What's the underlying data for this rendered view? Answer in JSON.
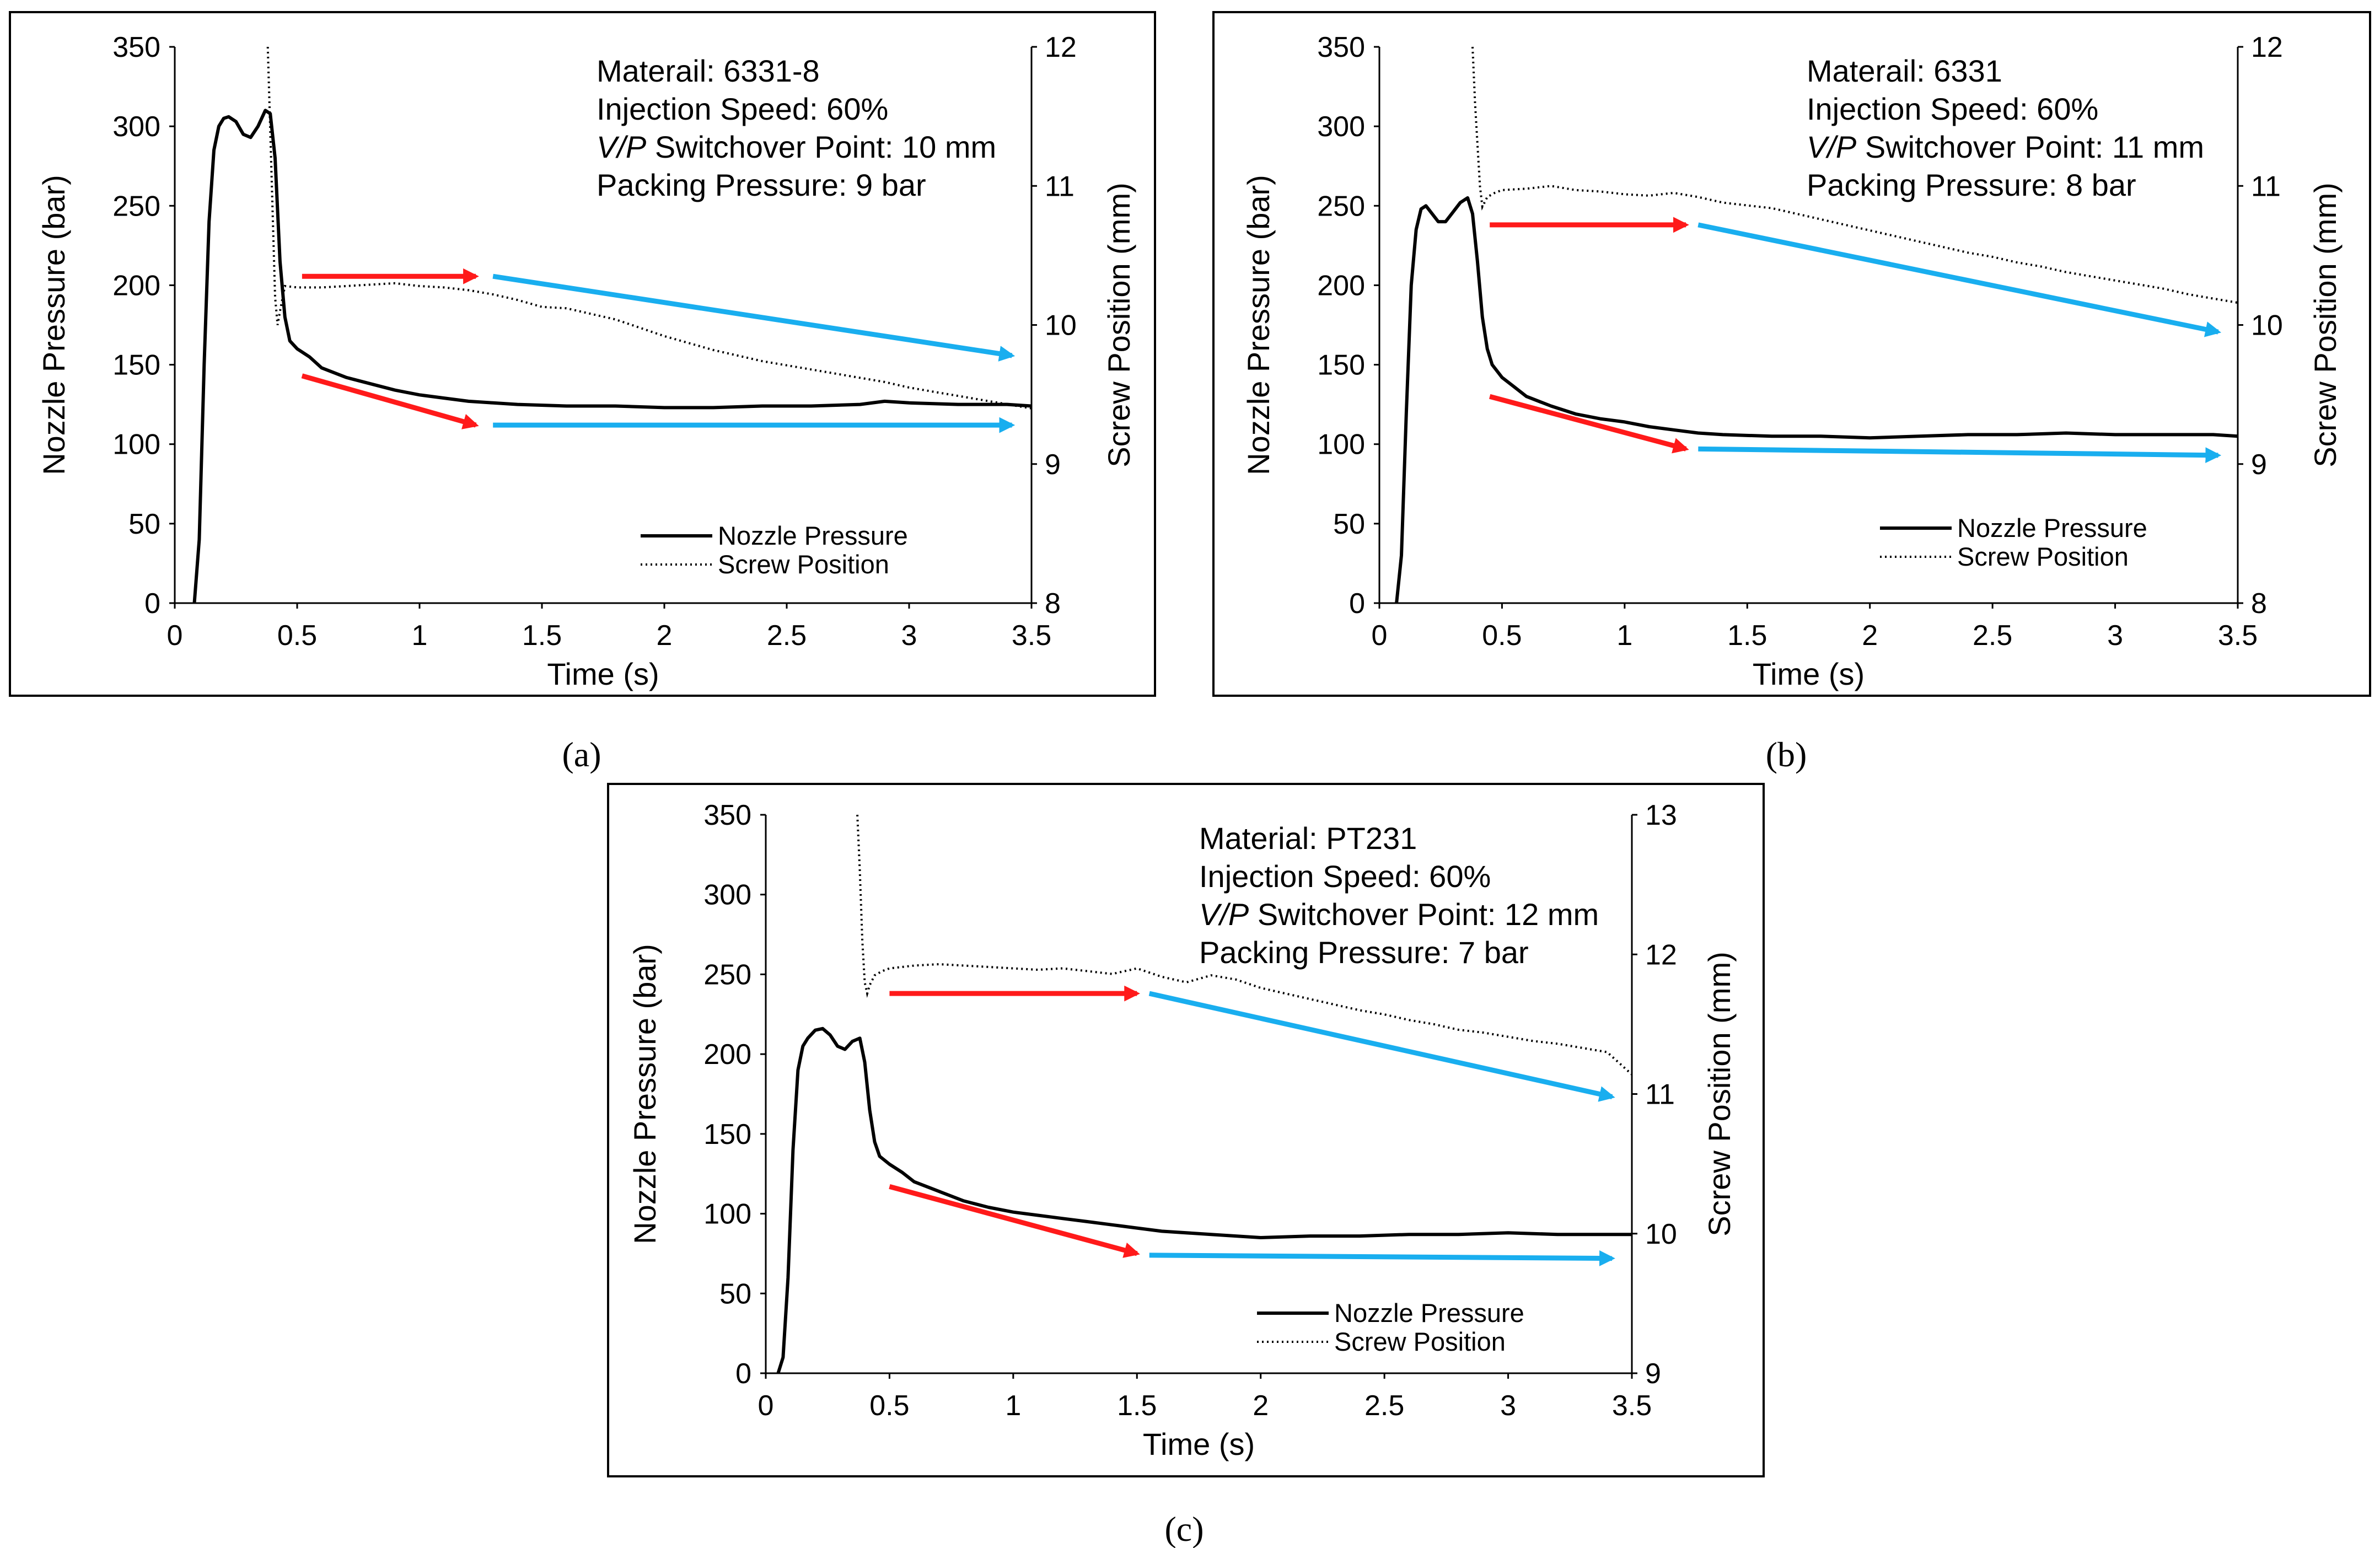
{
  "colors": {
    "red_arrow": "#ff1a1a",
    "blue_arrow": "#19aeef",
    "line": "#000000"
  },
  "chart_data": [
    {
      "type": "line",
      "caption": "(a)",
      "xlabel": "Time (s)",
      "ylabel": "Nozzle Pressure (bar)",
      "y2label": "Screw Position (mm)",
      "xlim": [
        0,
        3.5
      ],
      "ylim": [
        0,
        350
      ],
      "y2lim": [
        8,
        12
      ],
      "x_ticks": [
        "0",
        "0.5",
        "1",
        "1.5",
        "2",
        "2.5",
        "3",
        "3.5"
      ],
      "y_ticks": [
        "0",
        "50",
        "100",
        "150",
        "200",
        "250",
        "300",
        "350"
      ],
      "y2_ticks": [
        "8",
        "9",
        "10",
        "11",
        "12"
      ],
      "annotation": {
        "material": "Materail: 6331-8",
        "speed": "Injection Speed: 60%",
        "vp_italic": "V/P",
        "vp_rest": " Switchover Point: 10 mm",
        "packing": "Packing Pressure: 9 bar"
      },
      "legend": [
        "Nozzle Pressure",
        "Screw Position"
      ],
      "series": [
        {
          "name": "Nozzle Pressure",
          "axis": "left",
          "x": [
            0.08,
            0.1,
            0.12,
            0.14,
            0.16,
            0.18,
            0.2,
            0.22,
            0.25,
            0.28,
            0.31,
            0.34,
            0.37,
            0.39,
            0.41,
            0.43,
            0.45,
            0.47,
            0.5,
            0.55,
            0.6,
            0.7,
            0.8,
            0.9,
            1.0,
            1.1,
            1.2,
            1.3,
            1.4,
            1.6,
            1.8,
            2.0,
            2.2,
            2.4,
            2.6,
            2.8,
            2.9,
            3.0,
            3.2,
            3.4,
            3.5
          ],
          "values": [
            0,
            40,
            150,
            240,
            285,
            300,
            305,
            306,
            303,
            295,
            293,
            300,
            310,
            308,
            280,
            215,
            180,
            165,
            160,
            155,
            148,
            142,
            138,
            134,
            131,
            129,
            127,
            126,
            125,
            124,
            124,
            123,
            123,
            124,
            124,
            125,
            127,
            126,
            125,
            125,
            124
          ]
        },
        {
          "name": "Screw Position",
          "axis": "right",
          "x": [
            0.38,
            0.39,
            0.4,
            0.41,
            0.42,
            0.43,
            0.45,
            0.5,
            0.6,
            0.7,
            0.8,
            0.9,
            1.0,
            1.1,
            1.2,
            1.3,
            1.4,
            1.5,
            1.6,
            1.7,
            1.8,
            1.9,
            2.0,
            2.1,
            2.2,
            2.3,
            2.4,
            2.5,
            2.6,
            2.7,
            2.8,
            2.9,
            3.0,
            3.1,
            3.2,
            3.3,
            3.4,
            3.5
          ],
          "values": [
            12.0,
            11.4,
            10.8,
            10.2,
            10.0,
            10.1,
            10.28,
            10.27,
            10.27,
            10.28,
            10.29,
            10.3,
            10.28,
            10.27,
            10.25,
            10.22,
            10.18,
            10.13,
            10.12,
            10.08,
            10.04,
            9.98,
            9.92,
            9.87,
            9.82,
            9.78,
            9.74,
            9.71,
            9.68,
            9.65,
            9.62,
            9.59,
            9.55,
            9.52,
            9.49,
            9.46,
            9.43,
            9.4
          ]
        }
      ]
    },
    {
      "type": "line",
      "caption": "(b)",
      "xlabel": "Time (s)",
      "ylabel": "Nozzle Pressure (bar)",
      "y2label": "Screw Position (mm)",
      "xlim": [
        0,
        3.5
      ],
      "ylim": [
        0,
        350
      ],
      "y2lim": [
        8,
        12
      ],
      "x_ticks": [
        "0",
        "0.5",
        "1",
        "1.5",
        "2",
        "2.5",
        "3",
        "3.5"
      ],
      "y_ticks": [
        "0",
        "50",
        "100",
        "150",
        "200",
        "250",
        "300",
        "350"
      ],
      "y2_ticks": [
        "8",
        "9",
        "10",
        "11",
        "12"
      ],
      "annotation": {
        "material": "Materail: 6331",
        "speed": "Injection Speed: 60%",
        "vp_italic": "V/P",
        "vp_rest": " Switchover Point: 11 mm",
        "packing": "Packing Pressure: 8 bar"
      },
      "legend": [
        "Nozzle Pressure",
        "Screw Position"
      ],
      "series": [
        {
          "name": "Nozzle Pressure",
          "axis": "left",
          "x": [
            0.07,
            0.09,
            0.11,
            0.13,
            0.15,
            0.17,
            0.19,
            0.21,
            0.24,
            0.27,
            0.3,
            0.33,
            0.36,
            0.38,
            0.4,
            0.42,
            0.44,
            0.46,
            0.5,
            0.55,
            0.6,
            0.7,
            0.8,
            0.9,
            1.0,
            1.1,
            1.2,
            1.3,
            1.4,
            1.6,
            1.8,
            2.0,
            2.2,
            2.4,
            2.6,
            2.8,
            3.0,
            3.2,
            3.4,
            3.5
          ],
          "values": [
            0,
            30,
            120,
            200,
            235,
            248,
            250,
            246,
            240,
            240,
            246,
            252,
            255,
            245,
            215,
            180,
            160,
            150,
            142,
            136,
            130,
            124,
            119,
            116,
            114,
            111,
            109,
            107,
            106,
            105,
            105,
            104,
            105,
            106,
            106,
            107,
            106,
            106,
            106,
            105
          ]
        },
        {
          "name": "Screw Position",
          "axis": "right",
          "x": [
            0.38,
            0.39,
            0.4,
            0.41,
            0.42,
            0.44,
            0.47,
            0.5,
            0.6,
            0.7,
            0.8,
            0.9,
            1.0,
            1.1,
            1.2,
            1.3,
            1.4,
            1.5,
            1.6,
            1.7,
            1.8,
            1.9,
            2.0,
            2.1,
            2.2,
            2.3,
            2.4,
            2.5,
            2.6,
            2.7,
            2.8,
            2.9,
            3.0,
            3.1,
            3.2,
            3.3,
            3.4,
            3.5
          ],
          "values": [
            12.0,
            11.6,
            11.3,
            11.0,
            10.85,
            10.92,
            10.95,
            10.97,
            10.98,
            11.0,
            10.97,
            10.96,
            10.94,
            10.93,
            10.95,
            10.92,
            10.88,
            10.86,
            10.84,
            10.8,
            10.76,
            10.72,
            10.68,
            10.64,
            10.6,
            10.56,
            10.52,
            10.49,
            10.45,
            10.42,
            10.38,
            10.35,
            10.32,
            10.29,
            10.26,
            10.22,
            10.19,
            10.16
          ]
        }
      ]
    },
    {
      "type": "line",
      "caption": "(c)",
      "xlabel": "Time (s)",
      "ylabel": "Nozzle Pressure (bar)",
      "y2label": "Screw Position (mm)",
      "xlim": [
        0,
        3.5
      ],
      "ylim": [
        0,
        350
      ],
      "y2lim": [
        9,
        13
      ],
      "x_ticks": [
        "0",
        "0.5",
        "1",
        "1.5",
        "2",
        "2.5",
        "3",
        "3.5"
      ],
      "y_ticks": [
        "0",
        "50",
        "100",
        "150",
        "200",
        "250",
        "300",
        "350"
      ],
      "y2_ticks": [
        "9",
        "10",
        "11",
        "12",
        "13"
      ],
      "annotation": {
        "material": "Material: PT231",
        "speed": "Injection Speed: 60%",
        "vp_italic": "V/P",
        "vp_rest": " Switchover Point: 12 mm",
        "packing": "Packing Pressure: 7 bar"
      },
      "legend": [
        "Nozzle Pressure",
        "Screw Position"
      ],
      "series": [
        {
          "name": "Nozzle Pressure",
          "axis": "left",
          "x": [
            0.05,
            0.07,
            0.09,
            0.11,
            0.13,
            0.15,
            0.17,
            0.2,
            0.23,
            0.26,
            0.29,
            0.32,
            0.35,
            0.38,
            0.4,
            0.42,
            0.44,
            0.46,
            0.5,
            0.55,
            0.6,
            0.7,
            0.8,
            0.9,
            1.0,
            1.1,
            1.2,
            1.3,
            1.4,
            1.5,
            1.6,
            1.8,
            2.0,
            2.2,
            2.4,
            2.6,
            2.8,
            3.0,
            3.2,
            3.4,
            3.5
          ],
          "values": [
            0,
            10,
            60,
            140,
            190,
            205,
            210,
            215,
            216,
            212,
            205,
            203,
            208,
            210,
            195,
            165,
            145,
            136,
            131,
            126,
            120,
            114,
            108,
            104,
            101,
            99,
            97,
            95,
            93,
            91,
            89,
            87,
            85,
            86,
            86,
            87,
            87,
            88,
            87,
            87,
            87
          ]
        },
        {
          "name": "Screw Position",
          "axis": "right",
          "x": [
            0.37,
            0.38,
            0.39,
            0.4,
            0.41,
            0.42,
            0.44,
            0.47,
            0.5,
            0.6,
            0.7,
            0.8,
            0.9,
            1.0,
            1.1,
            1.2,
            1.3,
            1.4,
            1.5,
            1.6,
            1.7,
            1.8,
            1.9,
            2.0,
            2.1,
            2.2,
            2.3,
            2.4,
            2.5,
            2.6,
            2.7,
            2.8,
            2.9,
            3.0,
            3.1,
            3.2,
            3.3,
            3.4,
            3.5
          ],
          "values": [
            13.0,
            12.6,
            12.1,
            11.8,
            11.72,
            11.78,
            11.85,
            11.88,
            11.9,
            11.92,
            11.93,
            11.92,
            11.91,
            11.9,
            11.89,
            11.9,
            11.88,
            11.86,
            11.9,
            11.84,
            11.8,
            11.85,
            11.82,
            11.76,
            11.72,
            11.68,
            11.64,
            11.6,
            11.57,
            11.53,
            11.5,
            11.46,
            11.44,
            11.41,
            11.38,
            11.36,
            11.33,
            11.3,
            11.14
          ]
        }
      ]
    }
  ]
}
